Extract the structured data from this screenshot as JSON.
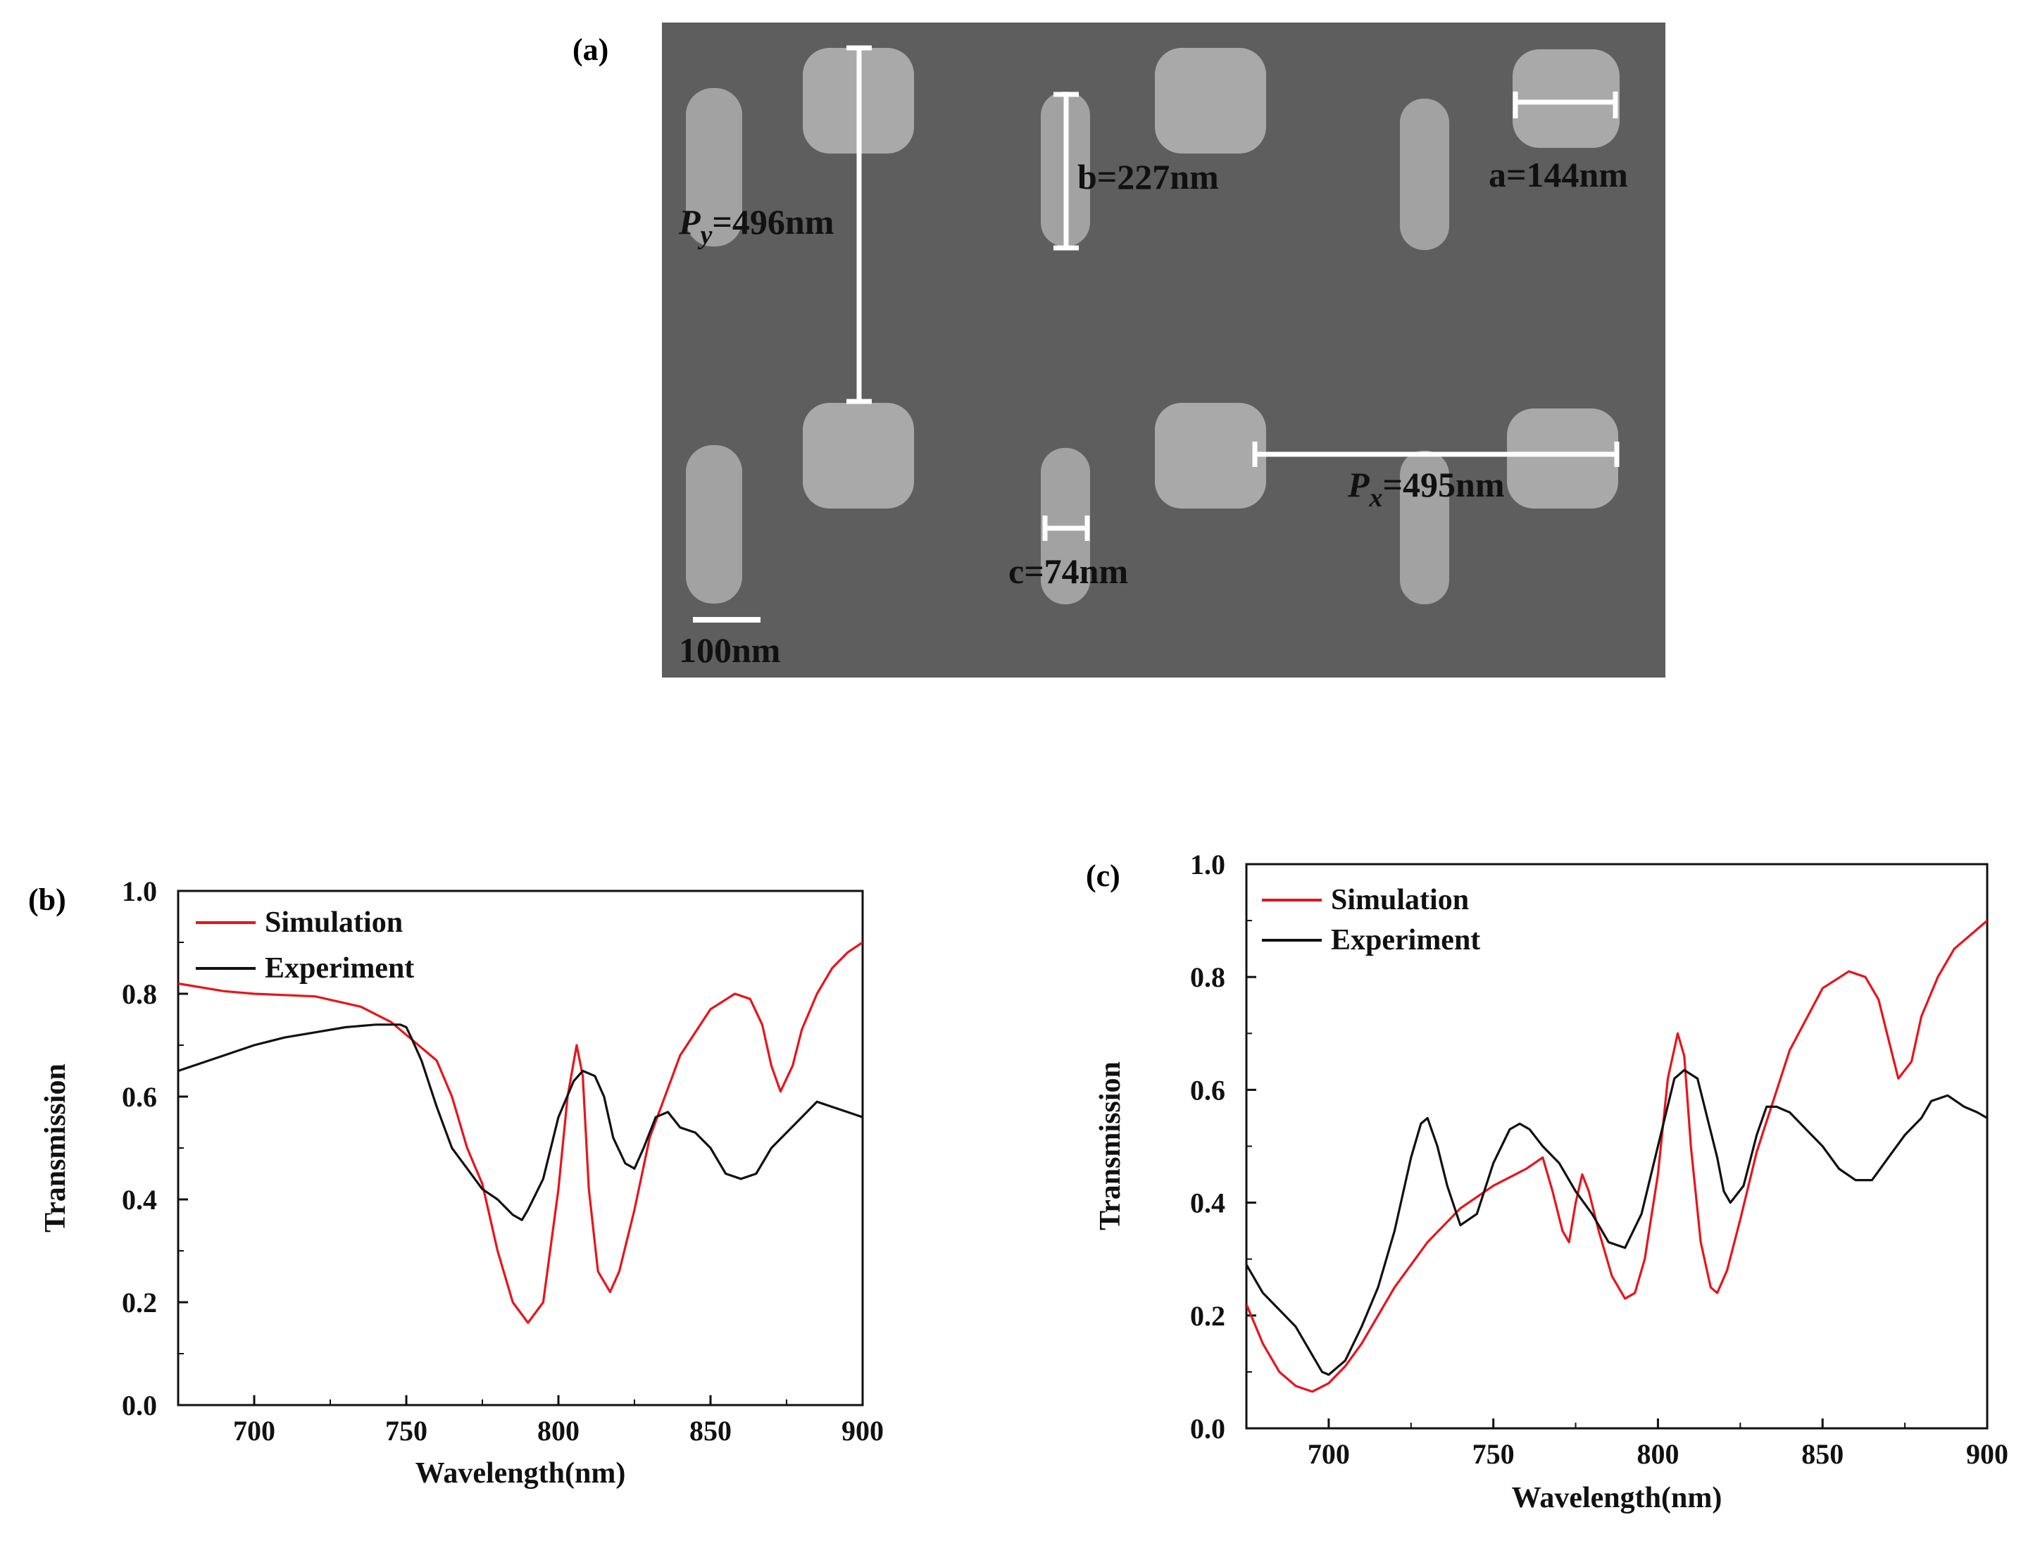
{
  "figure": {
    "panel_a": {
      "letter": "(a)",
      "labels": {
        "py_symbol": "P",
        "py_sub": "y",
        "py_value": "=496nm",
        "b": "b=227nm",
        "a": "a=144nm",
        "px_symbol": "P",
        "px_sub": "x",
        "px_value": "=495nm",
        "c": "c=74nm",
        "scale": "100nm"
      },
      "colors": {
        "background": "#5e5e5e",
        "particle": "#a9a9a9",
        "annotation": "#ffffff"
      }
    }
  },
  "chart_data": [
    {
      "panel": "(b)",
      "type": "line",
      "xlabel": "Wavelength(nm)",
      "ylabel": "Transmission",
      "xlim": [
        675,
        900
      ],
      "ylim": [
        0.0,
        1.0
      ],
      "xticks": [
        700,
        750,
        800,
        850,
        900
      ],
      "yticks": [
        0.0,
        0.2,
        0.4,
        0.6,
        0.8,
        1.0
      ],
      "ytick_labels": [
        "0.0",
        "0.2",
        "0.4",
        "0.6",
        "0.8",
        "1.0"
      ],
      "legend": {
        "position": "top-left",
        "entries": [
          "Simulation",
          "Experiment"
        ]
      },
      "series": [
        {
          "name": "Simulation",
          "color": "#e8141b",
          "x": [
            675,
            690,
            700,
            720,
            735,
            745,
            752,
            760,
            765,
            770,
            775,
            780,
            785,
            790,
            795,
            800,
            803,
            806,
            808,
            810,
            813,
            817,
            820,
            825,
            830,
            840,
            850,
            858,
            863,
            867,
            870,
            873,
            877,
            880,
            885,
            890,
            895,
            900
          ],
          "y": [
            0.82,
            0.805,
            0.8,
            0.795,
            0.775,
            0.745,
            0.71,
            0.67,
            0.6,
            0.5,
            0.43,
            0.3,
            0.2,
            0.16,
            0.2,
            0.42,
            0.6,
            0.7,
            0.64,
            0.42,
            0.26,
            0.22,
            0.26,
            0.38,
            0.52,
            0.68,
            0.77,
            0.8,
            0.79,
            0.74,
            0.66,
            0.61,
            0.66,
            0.73,
            0.8,
            0.85,
            0.88,
            0.9
          ]
        },
        {
          "name": "Experiment",
          "color": "#111111",
          "x": [
            675,
            690,
            700,
            710,
            720,
            730,
            740,
            745,
            748,
            750,
            752,
            755,
            760,
            765,
            770,
            775,
            780,
            785,
            788,
            790,
            795,
            800,
            805,
            808,
            812,
            815,
            818,
            822,
            825,
            828,
            832,
            836,
            840,
            845,
            850,
            855,
            860,
            865,
            870,
            875,
            880,
            885,
            890,
            895,
            900
          ],
          "y": [
            0.65,
            0.68,
            0.7,
            0.715,
            0.725,
            0.735,
            0.74,
            0.74,
            0.74,
            0.735,
            0.71,
            0.67,
            0.58,
            0.5,
            0.46,
            0.42,
            0.4,
            0.37,
            0.36,
            0.38,
            0.44,
            0.56,
            0.63,
            0.65,
            0.64,
            0.6,
            0.52,
            0.47,
            0.46,
            0.5,
            0.56,
            0.57,
            0.54,
            0.53,
            0.5,
            0.45,
            0.44,
            0.45,
            0.5,
            0.53,
            0.56,
            0.59,
            0.58,
            0.57,
            0.56
          ]
        }
      ]
    },
    {
      "panel": "(c)",
      "type": "line",
      "xlabel": "Wavelength(nm)",
      "ylabel": "Transmission",
      "xlim": [
        675,
        900
      ],
      "ylim": [
        0.0,
        1.0
      ],
      "xticks": [
        700,
        750,
        800,
        850,
        900
      ],
      "yticks": [
        0.0,
        0.2,
        0.4,
        0.6,
        0.8,
        1.0
      ],
      "ytick_labels": [
        "0.0",
        "0.2",
        "0.4",
        "0.6",
        "0.8",
        "1.0"
      ],
      "legend": {
        "position": "top-left",
        "entries": [
          "Simulation",
          "Experiment"
        ]
      },
      "series": [
        {
          "name": "Simulation",
          "color": "#e8141b",
          "x": [
            675,
            680,
            685,
            690,
            695,
            700,
            705,
            710,
            715,
            720,
            730,
            740,
            750,
            760,
            765,
            768,
            771,
            773,
            775,
            777,
            779,
            782,
            786,
            790,
            793,
            796,
            800,
            803,
            806,
            808,
            810,
            813,
            816,
            818,
            821,
            825,
            830,
            840,
            850,
            858,
            863,
            867,
            870,
            873,
            877,
            880,
            885,
            890,
            900
          ],
          "y": [
            0.22,
            0.15,
            0.1,
            0.075,
            0.065,
            0.08,
            0.11,
            0.15,
            0.2,
            0.25,
            0.33,
            0.39,
            0.43,
            0.46,
            0.48,
            0.42,
            0.35,
            0.33,
            0.4,
            0.45,
            0.42,
            0.35,
            0.27,
            0.23,
            0.24,
            0.3,
            0.45,
            0.62,
            0.7,
            0.66,
            0.5,
            0.33,
            0.25,
            0.24,
            0.28,
            0.37,
            0.49,
            0.67,
            0.78,
            0.81,
            0.8,
            0.76,
            0.69,
            0.62,
            0.65,
            0.73,
            0.8,
            0.85,
            0.9
          ]
        },
        {
          "name": "Experiment",
          "color": "#111111",
          "x": [
            675,
            680,
            685,
            690,
            695,
            698,
            700,
            705,
            710,
            715,
            720,
            725,
            728,
            730,
            733,
            736,
            740,
            745,
            750,
            755,
            758,
            761,
            765,
            770,
            775,
            780,
            785,
            790,
            795,
            800,
            805,
            808,
            812,
            815,
            818,
            820,
            822,
            826,
            830,
            833,
            836,
            840,
            845,
            850,
            855,
            860,
            865,
            870,
            875,
            880,
            883,
            888,
            893,
            897,
            900
          ],
          "y": [
            0.29,
            0.24,
            0.21,
            0.18,
            0.13,
            0.1,
            0.095,
            0.12,
            0.18,
            0.25,
            0.35,
            0.48,
            0.54,
            0.55,
            0.5,
            0.43,
            0.36,
            0.38,
            0.47,
            0.53,
            0.54,
            0.53,
            0.5,
            0.47,
            0.42,
            0.38,
            0.33,
            0.32,
            0.38,
            0.5,
            0.62,
            0.635,
            0.62,
            0.55,
            0.48,
            0.42,
            0.4,
            0.43,
            0.52,
            0.57,
            0.57,
            0.56,
            0.53,
            0.5,
            0.46,
            0.44,
            0.44,
            0.48,
            0.52,
            0.55,
            0.58,
            0.59,
            0.57,
            0.56,
            0.55
          ]
        }
      ]
    }
  ]
}
